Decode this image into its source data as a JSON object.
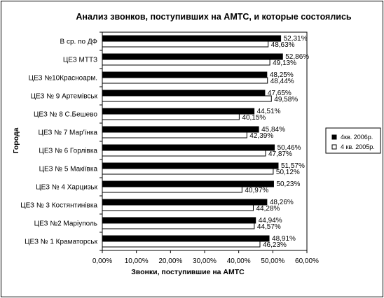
{
  "colors": {
    "series_2006": "#000000",
    "series_2005": "#ffffff",
    "outline": "#000000"
  },
  "chart_data": {
    "type": "bar",
    "orientation": "horizontal",
    "title": "Анализ звонков, поступивших на АМТС, и которые состоялись",
    "xlabel": "Звонки, поступившие на АМТС",
    "ylabel": "Города",
    "xlim": [
      0,
      60
    ],
    "x_tick_labels": [
      "0,00%",
      "10,00%",
      "20,00%",
      "30,00%",
      "40,00%",
      "50,00%",
      "60,00%"
    ],
    "grid": false,
    "legend_position": "right",
    "categories": [
      "В ср. по ДФ",
      "ЦЕЗ МТТЗ",
      "ЦЕЗ №10Красноарм.",
      "ЦЕЗ № 9 Артемівськ",
      "ЦЕЗ № 8 С.Бешево",
      "ЦЕЗ № 7 Мар'їнка",
      "ЦЕЗ № 6 Горлівка",
      "ЦЕЗ № 5 Макіївка",
      "ЦЕЗ № 4 Харцизьк",
      "ЦЕЗ № 3 Костянтинівка",
      "ЦЕЗ  №2 Маріуполь",
      "ЦЕЗ № 1 Краматорськ"
    ],
    "series": [
      {
        "name": "4кв. 2006р.",
        "values": [
          52.31,
          52.86,
          48.25,
          47.65,
          44.51,
          45.84,
          50.46,
          51.57,
          50.23,
          48.26,
          44.94,
          48.91
        ],
        "labels": [
          "52,31%",
          "52,86%",
          "48,25%",
          "47,65%",
          "44,51%",
          "45,84%",
          "50,46%",
          "51,57%",
          "50,23%",
          "48,26%",
          "44,94%",
          "48,91%"
        ]
      },
      {
        "name": "4 кв. 2005р.",
        "values": [
          48.63,
          49.13,
          48.44,
          49.58,
          40.15,
          42.39,
          47.87,
          50.12,
          40.97,
          44.28,
          44.57,
          46.23
        ],
        "labels": [
          "48,63%",
          "49,13%",
          "48,44%",
          "49,58%",
          "40,15%",
          "42,39%",
          "47,87%",
          "50,12%",
          "40,97%",
          "44,28%",
          "44,57%",
          "46,23%"
        ]
      }
    ]
  }
}
